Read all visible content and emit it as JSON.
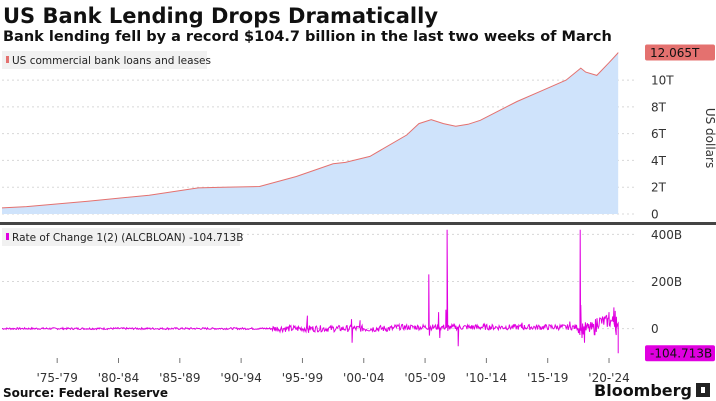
{
  "header": {
    "title": "US Bank Lending Drops Dramatically",
    "subtitle": "Bank lending fell by a record $104.7 billion in the last two weeks of March"
  },
  "footer": {
    "source": "Source: Federal Reserve",
    "brand": "Bloomberg"
  },
  "colors": {
    "top_line": "#e4716f",
    "top_fill": "#cfe3fb",
    "bottom_line": "#e000e0",
    "separator": "#444444",
    "grid": "#d8d8d8",
    "brand_square": "#222222"
  },
  "chart_data": [
    {
      "type": "area",
      "legend": "US commercial bank loans and leases",
      "ylabel": "US dollars",
      "y_tick_labels": [
        "0",
        "2T",
        "4T",
        "6T",
        "8T",
        "10T"
      ],
      "y_tick_values": [
        0,
        2,
        4,
        6,
        8,
        10
      ],
      "ylim": [
        -0.6,
        12.4
      ],
      "last_value_label": "12.065T",
      "last_value": 12.065,
      "x_tick_labels": [
        "'75-'79",
        "'80-'84",
        "'85-'89",
        "'90-'94",
        "'95-'99",
        "'00-'04",
        "'05-'09",
        "'10-'14",
        "'15-'19",
        "'20-'24"
      ],
      "x_tick_values": [
        1975,
        1980,
        1985,
        1990,
        1995,
        2000,
        2005,
        2010,
        2015,
        2020
      ],
      "xlim": [
        1973,
        2024.7
      ],
      "points": [
        [
          1973,
          0.45
        ],
        [
          1975,
          0.55
        ],
        [
          1980,
          0.95
        ],
        [
          1985,
          1.4
        ],
        [
          1989,
          1.95
        ],
        [
          1991,
          2.0
        ],
        [
          1994,
          2.05
        ],
        [
          1997,
          2.8
        ],
        [
          2000,
          3.75
        ],
        [
          2001,
          3.85
        ],
        [
          2003,
          4.3
        ],
        [
          2006,
          5.9
        ],
        [
          2007,
          6.75
        ],
        [
          2008,
          7.05
        ],
        [
          2009,
          6.75
        ],
        [
          2010,
          6.55
        ],
        [
          2011,
          6.7
        ],
        [
          2012,
          7.0
        ],
        [
          2015,
          8.4
        ],
        [
          2017,
          9.2
        ],
        [
          2019,
          10.0
        ],
        [
          2020.2,
          10.9
        ],
        [
          2020.6,
          10.6
        ],
        [
          2021.5,
          10.35
        ],
        [
          2022.5,
          11.3
        ],
        [
          2023.2,
          12.0
        ],
        [
          2023.25,
          12.065
        ]
      ]
    },
    {
      "type": "line",
      "legend": "Rate of Change 1(2) (ALCBLOAN) -104.713B",
      "y_tick_labels": [
        "0",
        "200B",
        "400B"
      ],
      "y_tick_values": [
        0,
        200,
        400
      ],
      "ylim": [
        -125,
        440
      ],
      "last_value_label": "-104.713B",
      "last_value": -104.713,
      "xlim": [
        1973,
        2024.7
      ],
      "spikes": [
        [
          1997.9,
          55
        ],
        [
          1998.0,
          -18
        ],
        [
          2001.5,
          40
        ],
        [
          2001.55,
          -60
        ],
        [
          2002.2,
          35
        ],
        [
          2007.8,
          230
        ],
        [
          2007.85,
          -30
        ],
        [
          2008.6,
          70
        ],
        [
          2008.7,
          -40
        ],
        [
          2009.2,
          80
        ],
        [
          2009.3,
          420
        ],
        [
          2009.35,
          -10
        ],
        [
          2010.2,
          -75
        ],
        [
          2012.3,
          20
        ],
        [
          2015.4,
          25
        ],
        [
          2019.3,
          30
        ],
        [
          2020.15,
          420
        ],
        [
          2020.2,
          100
        ],
        [
          2020.3,
          -40
        ],
        [
          2020.5,
          -60
        ],
        [
          2021.4,
          40
        ],
        [
          2022.5,
          70
        ],
        [
          2022.9,
          90
        ],
        [
          2023.0,
          75
        ],
        [
          2023.1,
          50
        ],
        [
          2023.25,
          -104.713
        ]
      ]
    }
  ]
}
